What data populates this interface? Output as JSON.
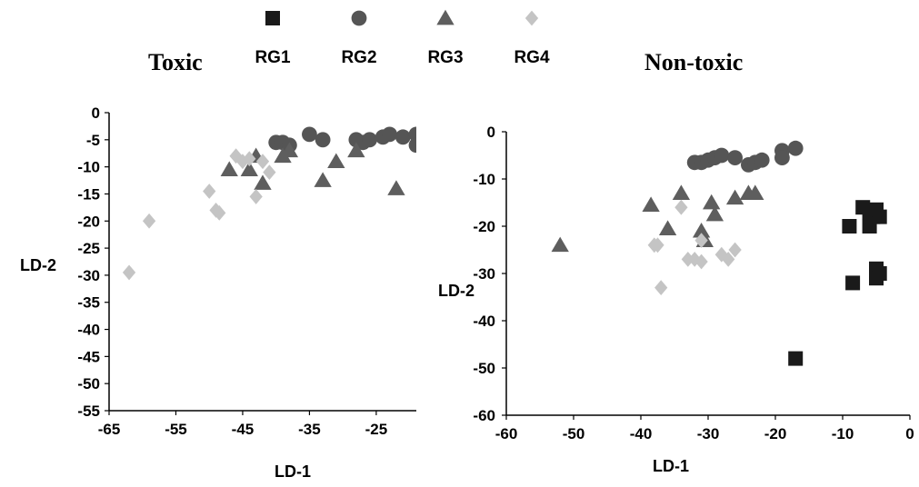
{
  "legend": [
    {
      "name": "RG1",
      "marker": "square",
      "color": "#1a1a1a"
    },
    {
      "name": "RG2",
      "marker": "circle",
      "color": "#555555"
    },
    {
      "name": "RG3",
      "marker": "triangle",
      "color": "#5e5e5e"
    },
    {
      "name": "RG4",
      "marker": "diamond",
      "color": "#c4c4c4"
    }
  ],
  "chart_data": [
    {
      "type": "scatter",
      "title": "Toxic",
      "xlabel": "LD-1",
      "ylabel": "LD-2",
      "xlim": [
        -65,
        -19
      ],
      "ylim": [
        -55,
        0
      ],
      "xticks": [
        -65,
        -55,
        -45,
        -35,
        -25
      ],
      "yticks": [
        0,
        -5,
        -10,
        -15,
        -20,
        -25,
        -30,
        -35,
        -40,
        -45,
        -50,
        -55
      ],
      "series": [
        {
          "name": "RG2",
          "marker": "circle",
          "color": "#555555",
          "points": [
            [
              -40,
              -5.5
            ],
            [
              -39,
              -5.5
            ],
            [
              -38,
              -6
            ],
            [
              -35,
              -4
            ],
            [
              -33,
              -5
            ],
            [
              -28,
              -5
            ],
            [
              -27,
              -5.5
            ],
            [
              -26,
              -5
            ],
            [
              -24,
              -4.5
            ],
            [
              -23,
              -4
            ],
            [
              -21,
              -4.5
            ],
            [
              -19,
              -4
            ],
            [
              -19,
              -6
            ]
          ]
        },
        {
          "name": "RG3",
          "marker": "triangle",
          "color": "#5e5e5e",
          "points": [
            [
              -47,
              -10.5
            ],
            [
              -44,
              -10.5
            ],
            [
              -43,
              -8
            ],
            [
              -42,
              -13
            ],
            [
              -39,
              -8
            ],
            [
              -38,
              -7
            ],
            [
              -33,
              -12.5
            ],
            [
              -31,
              -9
            ],
            [
              -28,
              -7
            ],
            [
              -22,
              -14
            ]
          ]
        },
        {
          "name": "RG4",
          "marker": "diamond",
          "color": "#c4c4c4",
          "points": [
            [
              -62,
              -29.5
            ],
            [
              -59,
              -20
            ],
            [
              -50,
              -14.5
            ],
            [
              -49,
              -18
            ],
            [
              -48.5,
              -18.5
            ],
            [
              -46,
              -8
            ],
            [
              -45,
              -9
            ],
            [
              -44,
              -8.5
            ],
            [
              -43,
              -15.5
            ],
            [
              -42,
              -9
            ],
            [
              -41,
              -11
            ]
          ]
        }
      ]
    },
    {
      "type": "scatter",
      "title": "Non-toxic",
      "xlabel": "LD-1",
      "ylabel": "LD-2",
      "xlim": [
        -60,
        0
      ],
      "ylim": [
        -60,
        0
      ],
      "xticks": [
        -60,
        -50,
        -40,
        -30,
        -20,
        -10,
        0
      ],
      "yticks": [
        0,
        -10,
        -20,
        -30,
        -40,
        -50,
        -60
      ],
      "series": [
        {
          "name": "RG1",
          "marker": "square",
          "color": "#1a1a1a",
          "points": [
            [
              -17,
              -48
            ],
            [
              -9,
              -20
            ],
            [
              -8.5,
              -32
            ],
            [
              -7,
              -16
            ],
            [
              -6,
              -17
            ],
            [
              -6,
              -20
            ],
            [
              -5.5,
              -18
            ],
            [
              -5,
              -16.5
            ],
            [
              -5,
              -29
            ],
            [
              -5,
              -31
            ],
            [
              -4.5,
              -18
            ],
            [
              -4.5,
              -30
            ]
          ]
        },
        {
          "name": "RG2",
          "marker": "circle",
          "color": "#555555",
          "points": [
            [
              -32,
              -6.5
            ],
            [
              -31,
              -6.5
            ],
            [
              -30,
              -6
            ],
            [
              -29,
              -5.5
            ],
            [
              -28,
              -5
            ],
            [
              -26,
              -5.5
            ],
            [
              -24,
              -7
            ],
            [
              -23,
              -6.5
            ],
            [
              -22,
              -6
            ],
            [
              -19,
              -4
            ],
            [
              -19,
              -5.5
            ],
            [
              -17,
              -3.5
            ]
          ]
        },
        {
          "name": "RG3",
          "marker": "triangle",
          "color": "#5e5e5e",
          "points": [
            [
              -52,
              -24
            ],
            [
              -38.5,
              -15.5
            ],
            [
              -36,
              -20.5
            ],
            [
              -34,
              -13
            ],
            [
              -31,
              -21
            ],
            [
              -30.5,
              -23
            ],
            [
              -29.5,
              -15
            ],
            [
              -29,
              -17.5
            ],
            [
              -26,
              -14
            ],
            [
              -24,
              -13
            ],
            [
              -23,
              -13
            ]
          ]
        },
        {
          "name": "RG4",
          "marker": "diamond",
          "color": "#c4c4c4",
          "points": [
            [
              -38,
              -24
            ],
            [
              -37.5,
              -24
            ],
            [
              -37,
              -33
            ],
            [
              -34,
              -16
            ],
            [
              -33,
              -27
            ],
            [
              -32,
              -27
            ],
            [
              -31,
              -27.5
            ],
            [
              -31,
              -23
            ],
            [
              -28,
              -26
            ],
            [
              -27,
              -27
            ],
            [
              -26,
              -25
            ]
          ]
        }
      ]
    }
  ]
}
